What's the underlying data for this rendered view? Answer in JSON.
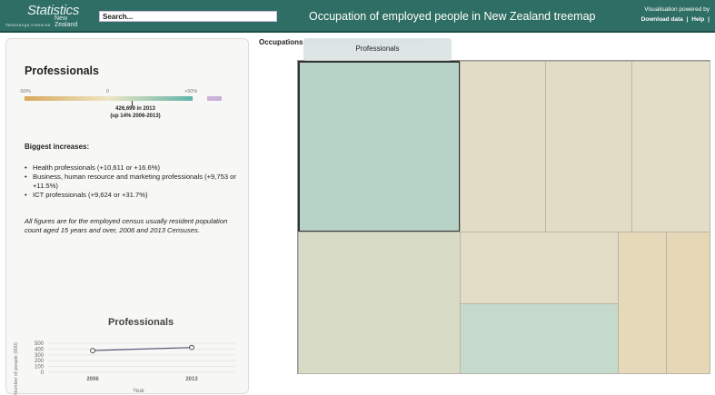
{
  "header": {
    "logo_line1": "Statistics",
    "logo_line2": "New Zealand",
    "logo_line3": "Tatauranga Aotearoa",
    "search_value": "Search...",
    "title": "Occupation of employed people in New Zealand treemap",
    "powered_by": "Visualisation powered by",
    "link_download": "Download data",
    "link_sep": "|",
    "link_help": "Help",
    "link_sep2": "|"
  },
  "panel": {
    "title": "Professionals",
    "scale_min": "-50%",
    "scale_mid": "0",
    "scale_max": "+50%",
    "stat_count": "426,699 in 2013",
    "stat_change": "(up 14% 2006-2013)",
    "increases_heading": "Biggest increases:",
    "increases": [
      "Health professionals (+10,611 or +16.6%)",
      "Business, human resource and marketing professionals (+9,753 or +11.5%)",
      "ICT professionals (+9,624 or +31.7%)"
    ],
    "note": "All figures are for the employed census usually resident population count aged 15 years and over, 2006 and 2013 Censuses."
  },
  "chart_data": {
    "type": "line",
    "title": "Professionals",
    "xlabel": "Year",
    "ylabel": "Number of people (000)",
    "x": [
      "2006",
      "2013"
    ],
    "series": [
      {
        "values": [
          374,
          427
        ]
      }
    ],
    "y_ticks": [
      "500",
      "400",
      "300",
      "200",
      "100",
      "0"
    ],
    "ylim": [
      0,
      500
    ],
    "grid": true,
    "line_color": "#555a78"
  },
  "treemap": {
    "breadcrumb": "Occupations of employed people in New Zealand",
    "breadcrumb_visible": "Occupations",
    "tooltip": "Professionals",
    "selected": "Professionals",
    "cell_colors": {
      "professionals": "#b7d3c7",
      "neutral": "#e2dcc6",
      "mid": "#d8dcc7",
      "teal_light": "#c5dacd",
      "warm": "#e6d8b6"
    }
  }
}
